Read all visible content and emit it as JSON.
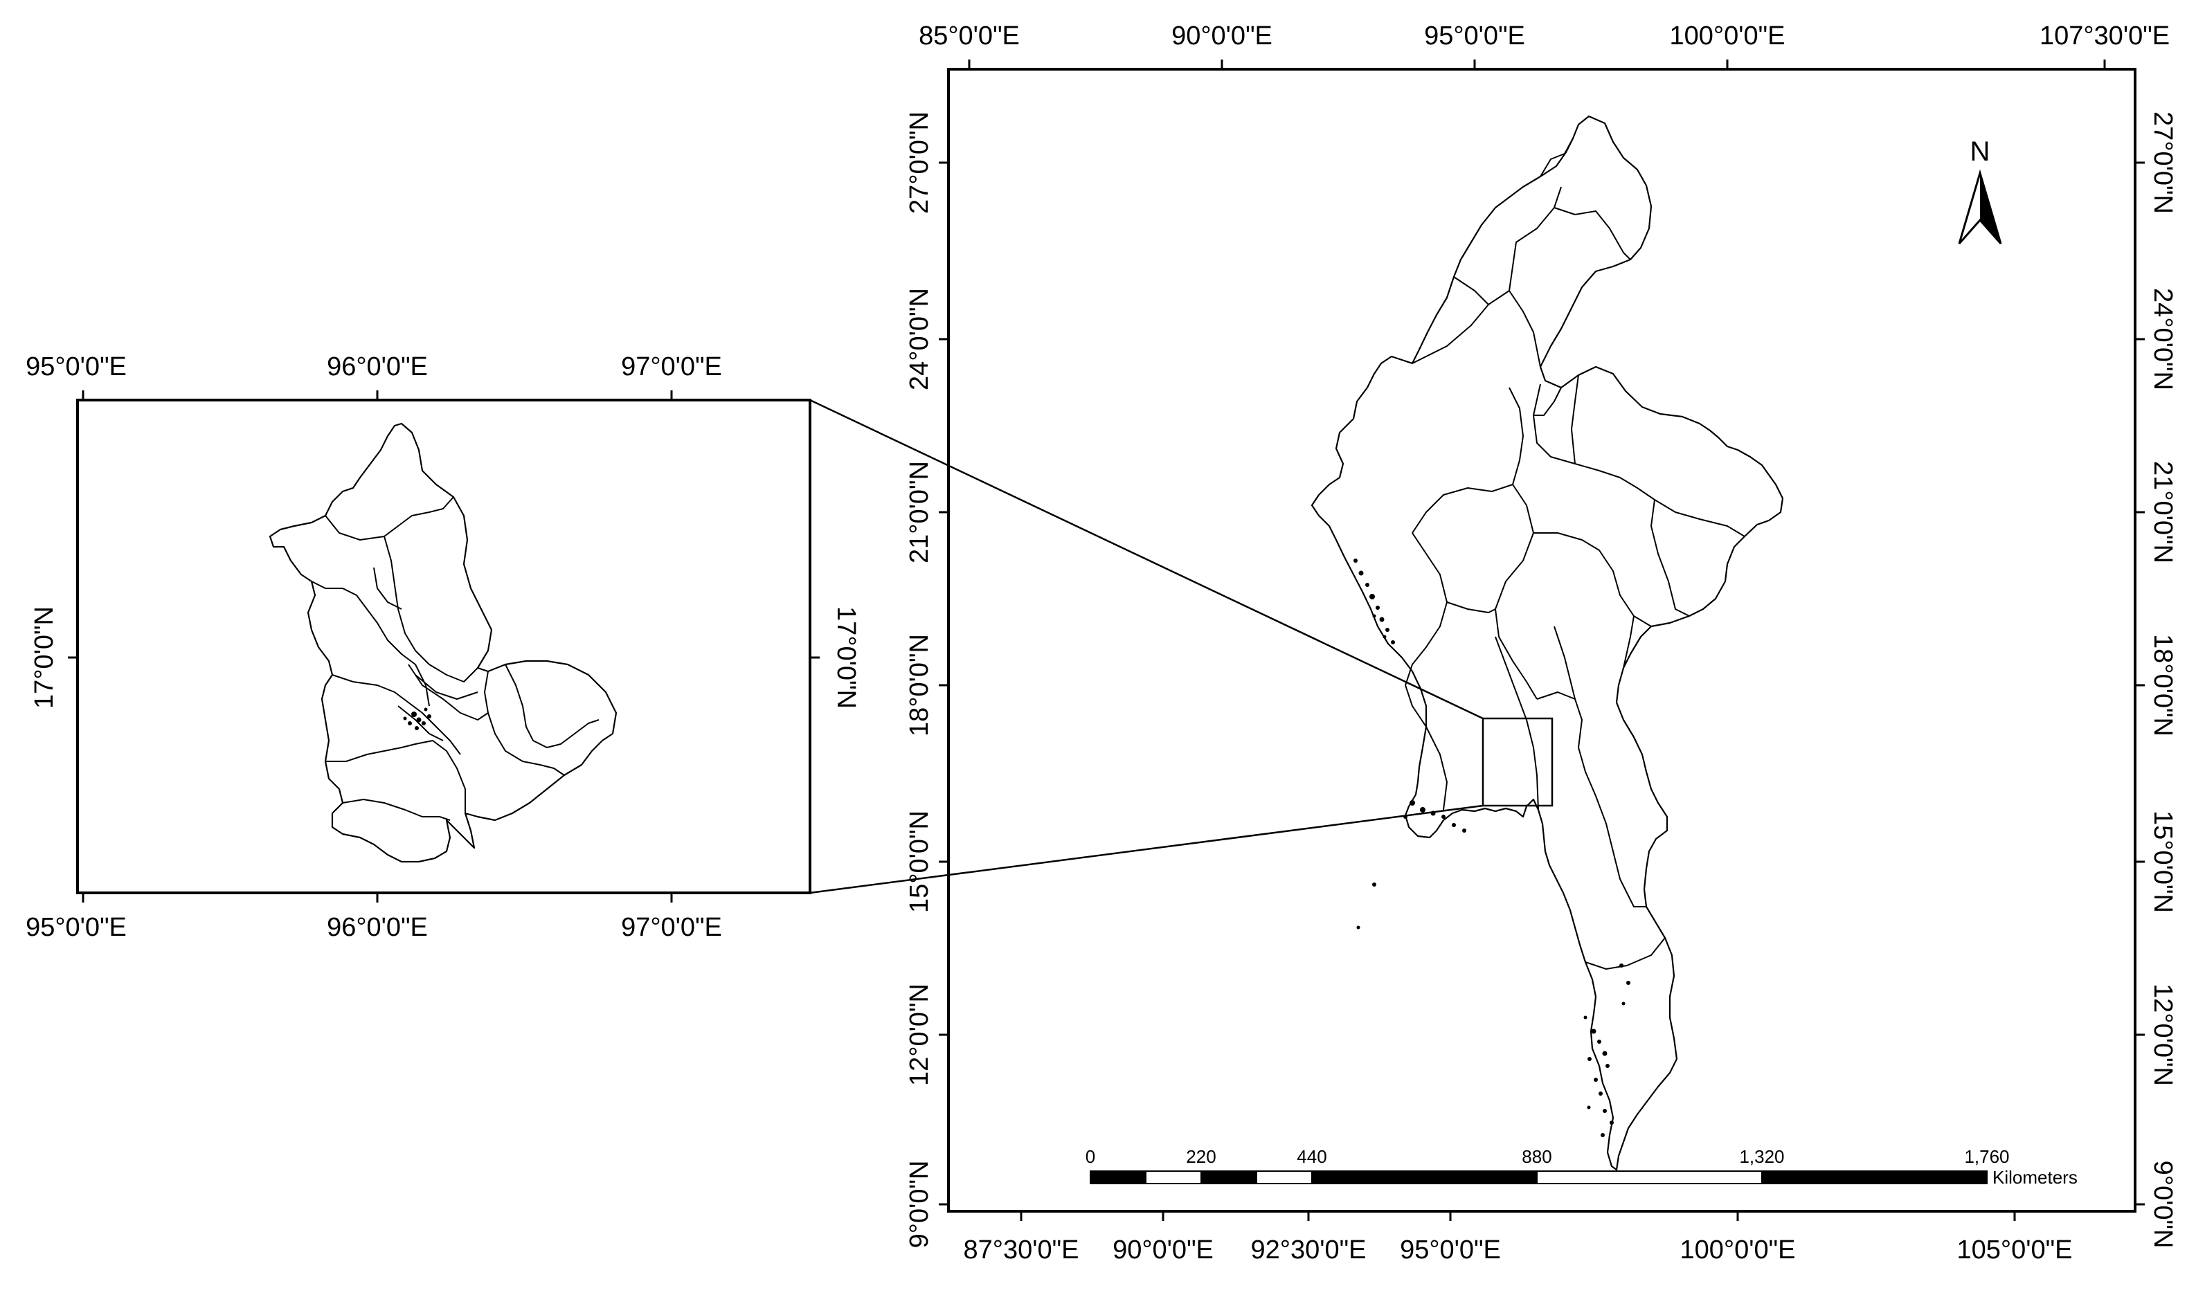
{
  "main_map": {
    "top_lon_labels": [
      "85°0'0\"E",
      "90°0'0\"E",
      "95°0'0\"E",
      "100°0'0\"E",
      "107°30'0\"E"
    ],
    "bottom_lon_labels": [
      "87°30'0\"E",
      "90°0'0\"E",
      "92°30'0\"E",
      "95°0'0\"E",
      "100°0'0\"E",
      "105°0'0\"E"
    ],
    "left_lat_labels": [
      "27°0'0\"N",
      "24°0'0\"N",
      "21°0'0\"N",
      "18°0'0\"N",
      "15°0'0\"N",
      "12°0'0\"N",
      "9°0'0\"N"
    ],
    "right_lat_labels": [
      "27°0'0\"N",
      "24°0'0\"N",
      "21°0'0\"N",
      "18°0'0\"N",
      "15°0'0\"N",
      "12°0'0\"N",
      "9°0'0\"N"
    ]
  },
  "inset_map": {
    "top_lon_labels": [
      "95°0'0\"E",
      "96°0'0\"E",
      "97°0'0\"E"
    ],
    "bottom_lon_labels": [
      "95°0'0\"E",
      "96°0'0\"E",
      "97°0'0\"E"
    ],
    "left_lat_label": "17°0'0\"N",
    "right_lat_label": "17°0'0\"N"
  },
  "north_arrow": {
    "label": "N"
  },
  "scale_bar": {
    "tick_labels": [
      "0",
      "220",
      "440",
      "880",
      "1,320",
      "1,760"
    ],
    "ticks_km": [
      0,
      220,
      440,
      880,
      1320,
      1760
    ],
    "total_km": 1760,
    "unit_label": "Kilometers"
  }
}
